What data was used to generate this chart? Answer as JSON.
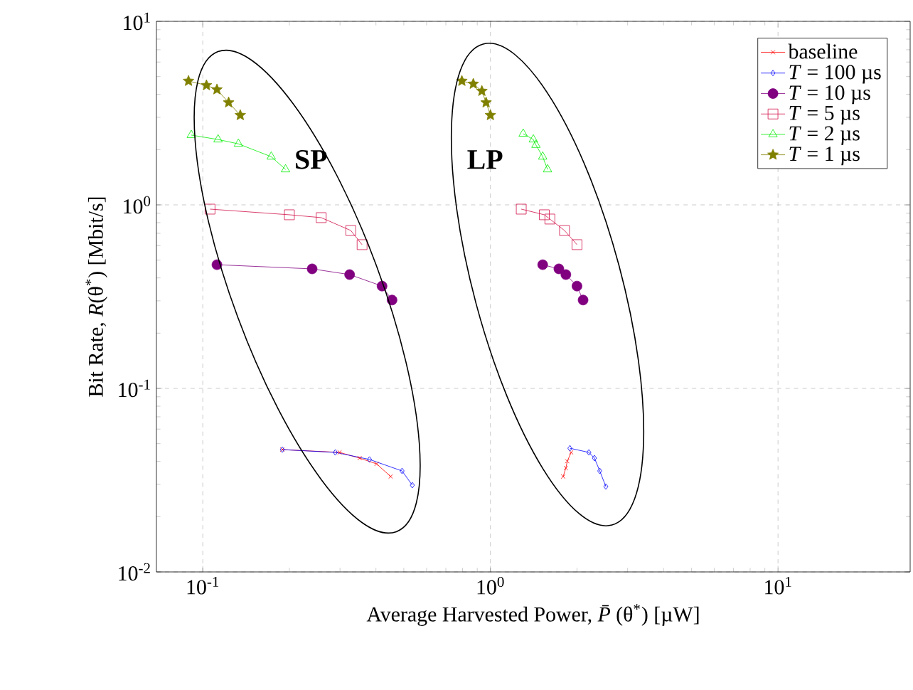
{
  "chart_data": {
    "type": "line",
    "xlabel": "Average Harvested Power, *P̄*(θ$^{*}$) [µW]",
    "ylabel": "Bit Rate, *R*(θ$^{*}$) [Mbit/s]",
    "log": "xy",
    "grid": true,
    "legend": "top right",
    "xlim": [
      0.069,
      28.8
    ],
    "ylim": [
      0.01,
      10
    ],
    "xticks": [
      {
        "value": 0.1,
        "label": "10$^{-1}$"
      },
      {
        "value": 1,
        "label": "10$^{0}$"
      },
      {
        "value": 10,
        "label": "10$^{1}$"
      }
    ],
    "yticks": [
      {
        "value": 0.01,
        "label": "10$^{-2}$"
      },
      {
        "value": 0.1,
        "label": "10$^{-1}$"
      },
      {
        "value": 1,
        "label": "10$^{0}$"
      },
      {
        "value": 10,
        "label": "10$^{1}$"
      }
    ],
    "annotations": [
      "SP",
      "LP"
    ],
    "series": [
      {
        "name": "baseline",
        "color": "#ff0000",
        "marker": "cross",
        "x": [
          0.189,
          0.299,
          0.351,
          0.402,
          0.45,
          null,
          1.79,
          1.83,
          1.85,
          1.91
        ],
        "values": [
          0.0464,
          0.0448,
          0.0417,
          0.0388,
          0.0331,
          null,
          0.0331,
          0.0368,
          0.0401,
          0.0448
        ]
      },
      {
        "name": "*T* = 100 µs",
        "color": "#0000ff",
        "marker": "diamond",
        "x": [
          0.189,
          0.289,
          0.38,
          0.493,
          0.535,
          null,
          1.89,
          2.2,
          2.3,
          2.4,
          2.52
        ],
        "values": [
          0.0464,
          0.0448,
          0.041,
          0.0355,
          0.0297,
          null,
          0.0472,
          0.0448,
          0.0417,
          0.0355,
          0.0292
        ]
      },
      {
        "name": "*T* = 10 µs",
        "color": "#800080",
        "marker": "circle",
        "x": [
          0.112,
          0.24,
          0.324,
          0.42,
          0.455,
          null,
          1.52,
          1.73,
          1.83,
          2.0,
          2.1
        ],
        "values": [
          0.472,
          0.448,
          0.417,
          0.361,
          0.303,
          null,
          0.472,
          0.448,
          0.417,
          0.361,
          0.303
        ]
      },
      {
        "name": "*T* = 5 µs",
        "color": "#d01048",
        "marker": "square",
        "x": [
          0.106,
          0.2,
          0.258,
          0.327,
          0.358,
          null,
          1.28,
          1.54,
          1.61,
          1.81,
          2.0
        ],
        "values": [
          0.948,
          0.883,
          0.852,
          0.725,
          0.607,
          null,
          0.948,
          0.883,
          0.837,
          0.725,
          0.607
        ]
      },
      {
        "name": "*T* = 2 µs",
        "color": "#00ee00",
        "marker": "triangle",
        "x": [
          0.0912,
          0.113,
          0.133,
          0.173,
          0.194,
          null,
          1.3,
          1.41,
          1.44,
          1.52,
          1.58
        ],
        "values": [
          2.4,
          2.27,
          2.15,
          1.83,
          1.56,
          null,
          2.44,
          2.27,
          2.12,
          1.83,
          1.56
        ]
      },
      {
        "name": "*T* = 1 µs",
        "color": "#808000",
        "marker": "star",
        "x": [
          0.0892,
          0.103,
          0.112,
          0.123,
          0.135,
          null,
          0.796,
          0.872,
          0.934,
          0.966,
          1.0
        ],
        "values": [
          4.73,
          4.48,
          4.25,
          3.61,
          3.08,
          null,
          4.73,
          4.56,
          4.17,
          3.61,
          3.08
        ]
      }
    ]
  }
}
